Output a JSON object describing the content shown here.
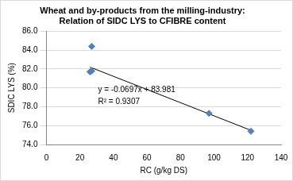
{
  "chart_data": {
    "type": "scatter",
    "title": [
      "Wheat and by-products from the milling-industry:",
      "Relation of SIDC LYS to CFIBRE content"
    ],
    "x_label": "RC (g/kg DS)",
    "y_label": "SDIC LYS (%)",
    "series": [
      {
        "type": "scatter",
        "color": "#4f81bd",
        "marker": "diamond",
        "x": [
          27,
          26,
          27,
          97,
          122
        ],
        "values": [
          84.4,
          81.7,
          81.8,
          77.3,
          75.4
        ]
      },
      {
        "type": "line",
        "color": "#000000",
        "line_style": "solid",
        "x": [
          26,
          122
        ],
        "values": [
          82.2,
          75.5
        ]
      }
    ],
    "annotations": [
      "y = -0.0697x + 83.981",
      "R² = 0.9307"
    ],
    "xlim": [
      0,
      140
    ],
    "xticks": [
      0,
      20,
      40,
      60,
      80,
      100,
      120,
      140
    ],
    "ylim": [
      74,
      86
    ],
    "yticks": [
      {
        "value": 74,
        "label": "74.0"
      },
      {
        "value": 76,
        "label": "76.0"
      },
      {
        "value": 78,
        "label": "78.0"
      },
      {
        "value": 80,
        "label": "80.0"
      },
      {
        "value": 82,
        "label": "82.0"
      },
      {
        "value": 84,
        "label": "84.0"
      },
      {
        "value": 86,
        "label": "86.0"
      }
    ],
    "grid": "y"
  }
}
